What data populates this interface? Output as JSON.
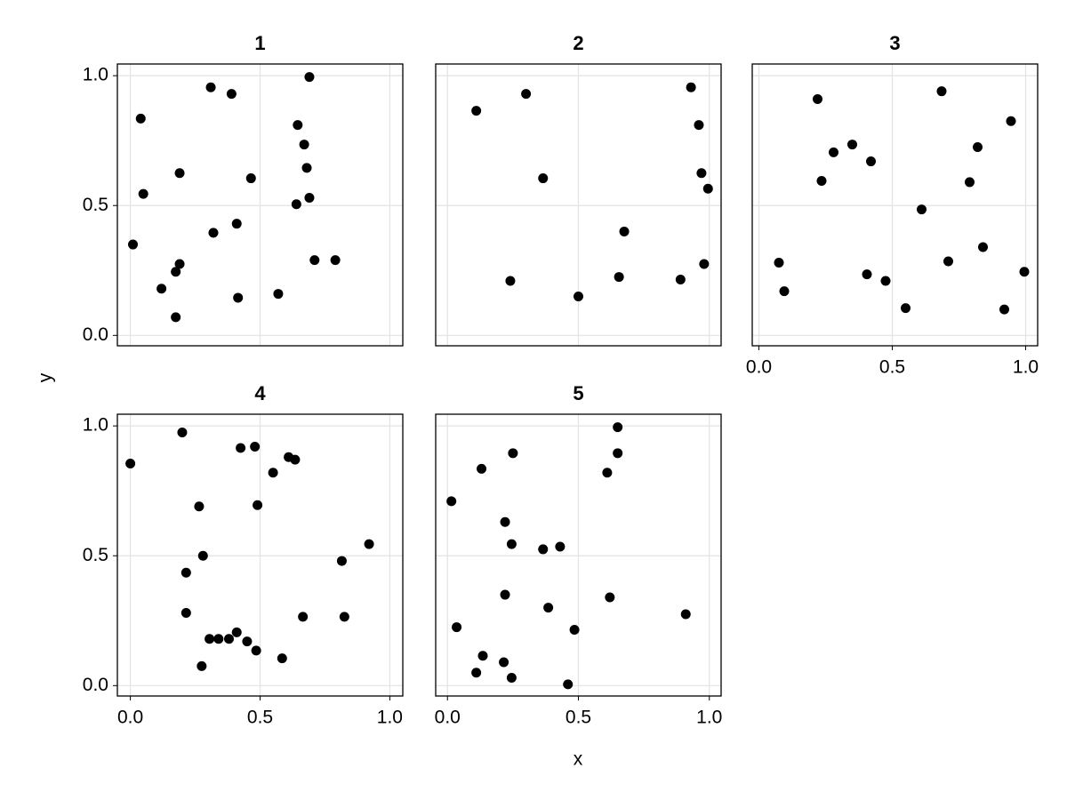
{
  "x_label": "x",
  "y_label": "y",
  "chart_data": [
    {
      "type": "scatter",
      "title": "1",
      "color": "#000000",
      "grid": true,
      "x": [
        0.31,
        0.39,
        0.69,
        0.04,
        0.645,
        0.67,
        0.68,
        0.19,
        0.465,
        0.05,
        0.69,
        0.64,
        0.41,
        0.32,
        0.01,
        0.71,
        0.79,
        0.19,
        0.175,
        0.12,
        0.57,
        0.415,
        0.175
      ],
      "y": [
        0.955,
        0.93,
        0.995,
        0.835,
        0.81,
        0.735,
        0.645,
        0.625,
        0.605,
        0.545,
        0.53,
        0.505,
        0.43,
        0.395,
        0.35,
        0.29,
        0.29,
        0.275,
        0.245,
        0.18,
        0.16,
        0.145,
        0.07
      ],
      "xlim": [
        -0.05,
        1.05
      ],
      "ylim": [
        -0.04,
        1.045
      ],
      "xticks": [
        0,
        0.5,
        1
      ],
      "yticks": [
        {
          "value": 0,
          "label": "0.0"
        },
        {
          "value": 0.5,
          "label": "0.5"
        },
        {
          "value": 1,
          "label": "1.0"
        }
      ]
    },
    {
      "type": "scatter",
      "title": "2",
      "color": "#000000",
      "grid": true,
      "x": [
        0.11,
        0.3,
        0.93,
        0.96,
        0.97,
        0.995,
        0.365,
        0.675,
        0.24,
        0.5,
        0.655,
        0.89,
        0.98
      ],
      "y": [
        0.865,
        0.93,
        0.955,
        0.81,
        0.625,
        0.565,
        0.605,
        0.4,
        0.21,
        0.15,
        0.225,
        0.215,
        0.275
      ],
      "xlim": [
        -0.045,
        1.045
      ],
      "ylim": [
        -0.04,
        1.045
      ],
      "xticks": [
        0,
        0.5,
        1
      ],
      "yticks": [
        0,
        0.5,
        1
      ]
    },
    {
      "type": "scatter",
      "title": "3",
      "color": "#000000",
      "grid": true,
      "x": [
        0.22,
        0.685,
        0.945,
        0.35,
        0.28,
        0.42,
        0.82,
        0.235,
        0.79,
        0.61,
        0.075,
        0.095,
        0.405,
        0.475,
        0.71,
        0.84,
        0.995,
        0.55,
        0.92
      ],
      "y": [
        0.91,
        0.94,
        0.825,
        0.735,
        0.705,
        0.67,
        0.725,
        0.595,
        0.59,
        0.485,
        0.28,
        0.17,
        0.235,
        0.21,
        0.285,
        0.34,
        0.245,
        0.105,
        0.1
      ],
      "xlim": [
        -0.025,
        1.045
      ],
      "ylim": [
        -0.04,
        1.045
      ],
      "xticks": [
        {
          "value": 0,
          "label": "0.0"
        },
        {
          "value": 0.5,
          "label": "0.5"
        },
        {
          "value": 1,
          "label": "1.0"
        }
      ],
      "yticks": [
        0,
        0.5,
        1
      ]
    },
    {
      "type": "scatter",
      "title": "4",
      "color": "#000000",
      "grid": true,
      "x": [
        0.0,
        0.2,
        0.425,
        0.48,
        0.61,
        0.635,
        0.55,
        0.265,
        0.49,
        0.92,
        0.28,
        0.815,
        0.215,
        0.215,
        0.665,
        0.825,
        0.41,
        0.305,
        0.34,
        0.38,
        0.45,
        0.485,
        0.585,
        0.275
      ],
      "y": [
        0.855,
        0.975,
        0.915,
        0.92,
        0.88,
        0.87,
        0.82,
        0.69,
        0.695,
        0.545,
        0.5,
        0.48,
        0.435,
        0.28,
        0.265,
        0.265,
        0.205,
        0.18,
        0.18,
        0.18,
        0.17,
        0.135,
        0.105,
        0.075
      ],
      "xlim": [
        -0.05,
        1.05
      ],
      "ylim": [
        -0.04,
        1.045
      ],
      "xticks": [
        {
          "value": 0,
          "label": "0.0"
        },
        {
          "value": 0.5,
          "label": "0.5"
        },
        {
          "value": 1,
          "label": "1.0"
        }
      ],
      "yticks": [
        {
          "value": 0,
          "label": "0.0"
        },
        {
          "value": 0.5,
          "label": "0.5"
        },
        {
          "value": 1,
          "label": "1.0"
        }
      ]
    },
    {
      "type": "scatter",
      "title": "5",
      "color": "#000000",
      "grid": true,
      "x": [
        0.65,
        0.65,
        0.25,
        0.13,
        0.61,
        0.015,
        0.22,
        0.245,
        0.365,
        0.43,
        0.22,
        0.62,
        0.385,
        0.91,
        0.035,
        0.485,
        0.135,
        0.215,
        0.11,
        0.245,
        0.46
      ],
      "y": [
        0.995,
        0.895,
        0.895,
        0.835,
        0.82,
        0.71,
        0.63,
        0.545,
        0.525,
        0.535,
        0.35,
        0.34,
        0.3,
        0.275,
        0.225,
        0.215,
        0.115,
        0.09,
        0.05,
        0.03,
        0.005
      ],
      "xlim": [
        -0.045,
        1.045
      ],
      "ylim": [
        -0.04,
        1.045
      ],
      "xticks": [
        {
          "value": 0,
          "label": "0.0"
        },
        {
          "value": 0.5,
          "label": "0.5"
        },
        {
          "value": 1,
          "label": "1.0"
        }
      ],
      "yticks": [
        0,
        0.5,
        1
      ]
    }
  ]
}
